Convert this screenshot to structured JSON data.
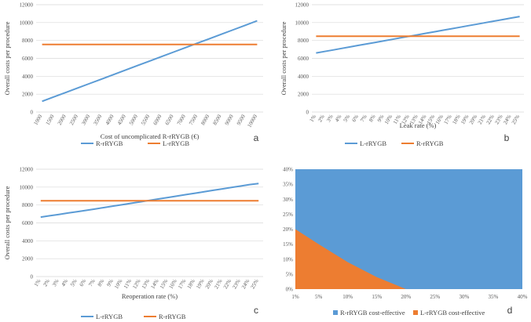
{
  "chart_data": [
    {
      "type": "line",
      "panel_label": "a",
      "title": "",
      "xlabel": "Cost of uncomplicated R-rRYGB (€)",
      "ylabel": "Overall costs per procedure",
      "categories": [
        "1000",
        "1500",
        "2000",
        "2500",
        "3000",
        "3500",
        "4000",
        "4500",
        "5000",
        "5500",
        "6000",
        "6500",
        "7000",
        "7500",
        "8000",
        "8500",
        "9000",
        "9500",
        "10000"
      ],
      "ylim": [
        0,
        12000
      ],
      "yticks": [
        "0",
        "2000",
        "4000",
        "6000",
        "8000",
        "10000",
        "12000"
      ],
      "series": [
        {
          "name": "R-rRYGB",
          "color": "#5b9bd5",
          "values": [
            1200,
            1700,
            2200,
            2700,
            3200,
            3700,
            4200,
            4700,
            5200,
            5700,
            6200,
            6700,
            7200,
            7700,
            8200,
            8700,
            9200,
            9700,
            10200
          ]
        },
        {
          "name": "L-rRYGB",
          "color": "#ed7d31",
          "values": [
            7550,
            7550,
            7550,
            7550,
            7550,
            7550,
            7550,
            7550,
            7550,
            7550,
            7550,
            7550,
            7550,
            7550,
            7550,
            7550,
            7550,
            7550,
            7550
          ]
        }
      ],
      "legend": "bottom",
      "grid": true
    },
    {
      "type": "line",
      "panel_label": "b",
      "title": "",
      "xlabel": "Leak rate (%)",
      "ylabel": "Overall costs per procedure",
      "categories": [
        "1%",
        "2%",
        "3%",
        "4%",
        "5%",
        "6%",
        "7%",
        "8%",
        "9%",
        "10%",
        "11%",
        "12%",
        "13%",
        "14%",
        "15%",
        "16%",
        "17%",
        "18%",
        "19%",
        "20%",
        "21%",
        "22%",
        "23%",
        "24%",
        "25%"
      ],
      "ylim": [
        0,
        12000
      ],
      "yticks": [
        "0",
        "2000",
        "4000",
        "6000",
        "8000",
        "10000",
        "12000"
      ],
      "series": [
        {
          "name": "L-rRYGB",
          "color": "#5b9bd5",
          "values": [
            6600,
            6770,
            6940,
            7110,
            7280,
            7450,
            7620,
            7790,
            7960,
            8130,
            8300,
            8470,
            8640,
            8810,
            8980,
            9150,
            9320,
            9490,
            9660,
            9830,
            10000,
            10170,
            10340,
            10510,
            10680
          ]
        },
        {
          "name": "R-rRYGB",
          "color": "#ed7d31",
          "values": [
            8480,
            8480,
            8480,
            8480,
            8480,
            8480,
            8480,
            8480,
            8480,
            8480,
            8480,
            8480,
            8480,
            8480,
            8480,
            8480,
            8480,
            8480,
            8480,
            8480,
            8480,
            8480,
            8480,
            8480,
            8480
          ]
        }
      ],
      "legend": "bottom",
      "grid": true
    },
    {
      "type": "line",
      "panel_label": "c",
      "title": "",
      "xlabel": "Reoperation rate (%)",
      "ylabel": "Overall costs per procedure",
      "categories": [
        "1%",
        "2%",
        "3%",
        "4%",
        "5%",
        "6%",
        "7%",
        "8%",
        "9%",
        "10%",
        "11%",
        "12%",
        "13%",
        "14%",
        "15%",
        "16%",
        "17%",
        "18%",
        "19%",
        "20%",
        "21%",
        "22%",
        "23%",
        "24%",
        "25%"
      ],
      "ylim": [
        0,
        12000
      ],
      "yticks": [
        "0",
        "2000",
        "4000",
        "6000",
        "8000",
        "10000",
        "12000"
      ],
      "series": [
        {
          "name": "L-rRYGB",
          "color": "#5b9bd5",
          "values": [
            6650,
            6800,
            6950,
            7100,
            7250,
            7400,
            7560,
            7720,
            7880,
            8040,
            8200,
            8360,
            8520,
            8680,
            8840,
            9000,
            9160,
            9320,
            9480,
            9640,
            9800,
            9960,
            10120,
            10280,
            10400
          ]
        },
        {
          "name": "R-rRYGB",
          "color": "#ed7d31",
          "values": [
            8480,
            8480,
            8480,
            8480,
            8480,
            8480,
            8480,
            8480,
            8480,
            8480,
            8480,
            8480,
            8480,
            8480,
            8480,
            8480,
            8480,
            8480,
            8480,
            8480,
            8480,
            8480,
            8480,
            8480,
            8480
          ]
        }
      ],
      "legend": "bottom",
      "grid": true
    },
    {
      "type": "area",
      "panel_label": "d",
      "title": "",
      "xlabel": "",
      "ylabel": "",
      "xticks": [
        "1%",
        "5%",
        "10%",
        "15%",
        "20%",
        "25%",
        "30%",
        "35%",
        "40%"
      ],
      "yticks": [
        "0%",
        "5%",
        "10%",
        "15%",
        "20%",
        "25%",
        "30%",
        "35%",
        "40%"
      ],
      "ylim": [
        0,
        40
      ],
      "xlim": [
        1,
        40
      ],
      "series": [
        {
          "name": "R-rRYGB cost-effective",
          "color": "#5b9bd5",
          "region": "above boundary"
        },
        {
          "name": "L-rRYGB cost-effective",
          "color": "#ed7d31",
          "region": "below boundary",
          "boundary": {
            "x": [
              1,
              5,
              10,
              15,
              20
            ],
            "y": [
              20,
              15,
              9,
              4,
              0
            ]
          }
        }
      ],
      "legend": "bottom",
      "grid": false
    }
  ]
}
